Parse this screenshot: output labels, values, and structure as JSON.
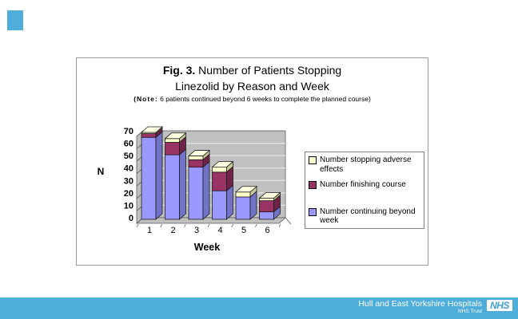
{
  "slide": {
    "title": {
      "prefix": "Fig. 3.",
      "line1_rest": " Number of Patients Stopping",
      "line2": "Linezolid by Reason and Week",
      "note_prefix": "(Note:",
      "note_rest": " 6 patients continued beyond 6 weeks to complete the planned course)"
    },
    "accent_color": "#4FADDA"
  },
  "chart_data": {
    "type": "bar",
    "stacked": true,
    "three_d": true,
    "title": "Fig. 3. Number of Patients Stopping Linezolid by Reason and Week",
    "note": "(Note: 6 patients continued beyond 6 weeks to complete the planned course)",
    "categories": [
      "1",
      "2",
      "3",
      "4",
      "5",
      "6"
    ],
    "xlabel": "Week",
    "ylabel": "N",
    "ylim": [
      0,
      70
    ],
    "ytick_step": 10,
    "yticks": [
      "0",
      "10",
      "20",
      "30",
      "40",
      "50",
      "60",
      "70"
    ],
    "grid": true,
    "wall_color": "#C0C0C0",
    "gridline_color": "#ECECEC",
    "legend_position": "right",
    "series": [
      {
        "name": "Number continuing beyond week",
        "color": "#9999FF",
        "side_color": "#7173C6",
        "values": [
          66,
          52,
          42,
          23,
          18,
          6
        ]
      },
      {
        "name": "Number finishing course",
        "color": "#993366",
        "side_color": "#6F2349",
        "values": [
          3,
          10,
          6,
          15,
          0,
          9
        ]
      },
      {
        "name": "Number stopping adverse effects",
        "color": "#FFFFCC",
        "side_color": "#C9C99C",
        "top_color": "#FFFFE2",
        "values": [
          1,
          3,
          3,
          4,
          4,
          2
        ]
      }
    ]
  },
  "footer": {
    "bg": "#4FADDA",
    "org": "Hull and East Yorkshire Hospitals",
    "sub": "NHS Trust",
    "logo": "NHS",
    "logo_color": "#3E9FD0"
  }
}
